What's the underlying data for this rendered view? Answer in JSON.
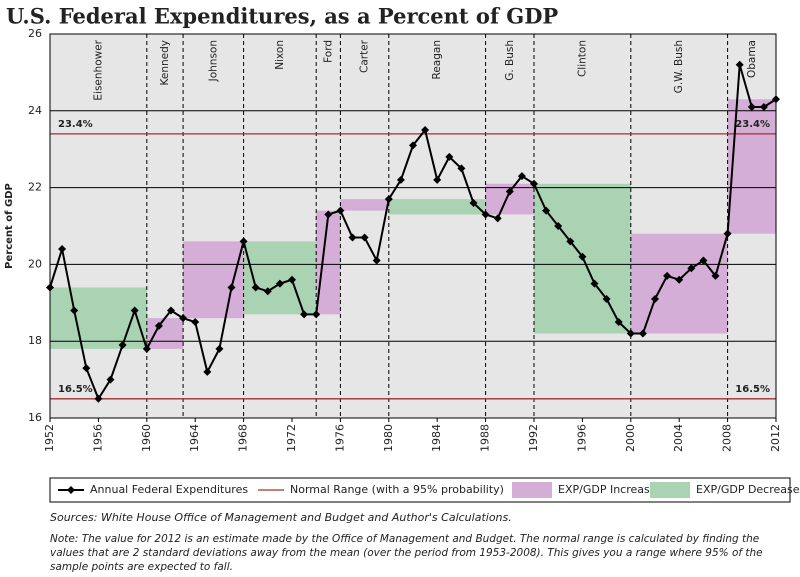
{
  "chart_data": {
    "type": "line",
    "title": "U.S. Federal Expenditures, as a Percent of GDP",
    "y_label": "Percent of GDP",
    "x": [
      1952,
      1953,
      1954,
      1955,
      1956,
      1957,
      1958,
      1959,
      1960,
      1961,
      1962,
      1963,
      1964,
      1965,
      1966,
      1967,
      1968,
      1969,
      1970,
      1971,
      1972,
      1973,
      1974,
      1975,
      1976,
      1977,
      1978,
      1979,
      1980,
      1981,
      1982,
      1983,
      1984,
      1985,
      1986,
      1987,
      1988,
      1989,
      1990,
      1991,
      1992,
      1993,
      1994,
      1995,
      1996,
      1997,
      1998,
      1999,
      2000,
      2001,
      2002,
      2003,
      2004,
      2005,
      2006,
      2007,
      2008,
      2009,
      2010,
      2011,
      2012
    ],
    "series": [
      {
        "name": "Annual Federal Expenditures",
        "color": "#000000",
        "values": [
          19.4,
          20.4,
          18.8,
          17.3,
          16.5,
          17.0,
          17.9,
          18.8,
          17.8,
          18.4,
          18.8,
          18.6,
          18.5,
          17.2,
          17.8,
          19.4,
          20.6,
          19.4,
          19.3,
          19.5,
          19.6,
          18.7,
          18.7,
          21.3,
          21.4,
          20.7,
          20.7,
          20.1,
          21.7,
          22.2,
          23.1,
          23.5,
          22.2,
          22.8,
          22.5,
          21.6,
          21.3,
          21.2,
          21.9,
          22.3,
          22.1,
          21.4,
          21.0,
          20.6,
          20.2,
          19.5,
          19.1,
          18.5,
          18.2,
          18.2,
          19.1,
          19.7,
          19.6,
          19.9,
          20.1,
          19.7,
          20.8,
          25.2,
          24.1,
          24.1,
          24.3
        ]
      }
    ],
    "reference_lines": {
      "name": "Normal Range (with a 95% probability)",
      "color": "#a0302f",
      "values": [
        23.4,
        16.5
      ],
      "value_labels": [
        "23.4%",
        "16.5%"
      ]
    },
    "band_legend": [
      {
        "name": "EXP/GDP Increase",
        "color": "#d4aed6"
      },
      {
        "name": "EXP/GDP Decrease",
        "color": "#a9d3b2"
      }
    ],
    "bands": [
      {
        "name": "Eisenhower",
        "start": 1952,
        "end": 1960,
        "low": 17.8,
        "high": 19.4,
        "color": "#a9d3b2"
      },
      {
        "name": "Kennedy",
        "start": 1960,
        "end": 1963,
        "low": 17.8,
        "high": 18.6,
        "color": "#d4aed6"
      },
      {
        "name": "Johnson",
        "start": 1963,
        "end": 1968,
        "low": 18.6,
        "high": 20.6,
        "color": "#d4aed6"
      },
      {
        "name": "Nixon",
        "start": 1968,
        "end": 1974,
        "low": 18.7,
        "high": 20.6,
        "color": "#a9d3b2"
      },
      {
        "name": "Ford",
        "start": 1974,
        "end": 1976,
        "low": 18.7,
        "high": 21.4,
        "color": "#d4aed6"
      },
      {
        "name": "Carter",
        "start": 1976,
        "end": 1980,
        "low": 21.4,
        "high": 21.7,
        "color": "#d4aed6"
      },
      {
        "name": "Reagan",
        "start": 1980,
        "end": 1988,
        "low": 21.3,
        "high": 21.7,
        "color": "#a9d3b2"
      },
      {
        "name": "G. Bush",
        "start": 1988,
        "end": 1992,
        "low": 21.3,
        "high": 22.1,
        "color": "#d4aed6"
      },
      {
        "name": "Clinton",
        "start": 1992,
        "end": 2000,
        "low": 18.2,
        "high": 22.1,
        "color": "#a9d3b2"
      },
      {
        "name": "G.W. Bush",
        "start": 2000,
        "end": 2008,
        "low": 18.2,
        "high": 20.8,
        "color": "#d4aed6"
      },
      {
        "name": "Obama",
        "start": 2008,
        "end": 2012,
        "low": 20.8,
        "high": 24.3,
        "color": "#d4aed6"
      }
    ],
    "xlim": [
      1952,
      2012
    ],
    "xticks": [
      1952,
      1956,
      1960,
      1964,
      1968,
      1972,
      1976,
      1980,
      1984,
      1988,
      1992,
      1996,
      2000,
      2004,
      2008,
      2012
    ],
    "ylim": [
      16,
      26
    ],
    "yticks": [
      16,
      18,
      20,
      22,
      24,
      26
    ],
    "grid": true,
    "sources": "Sources: White House Office of Management and Budget and Author's Calculations.",
    "note": [
      "Note: The value for 2012 is an estimate made by the Office of Management and Budget. The normal range is calculated by finding the",
      "values that are 2 standard deviations away from the mean (over the period from 1953-2008). This gives you a range where 95% of the",
      "sample points are expected to fall."
    ]
  }
}
